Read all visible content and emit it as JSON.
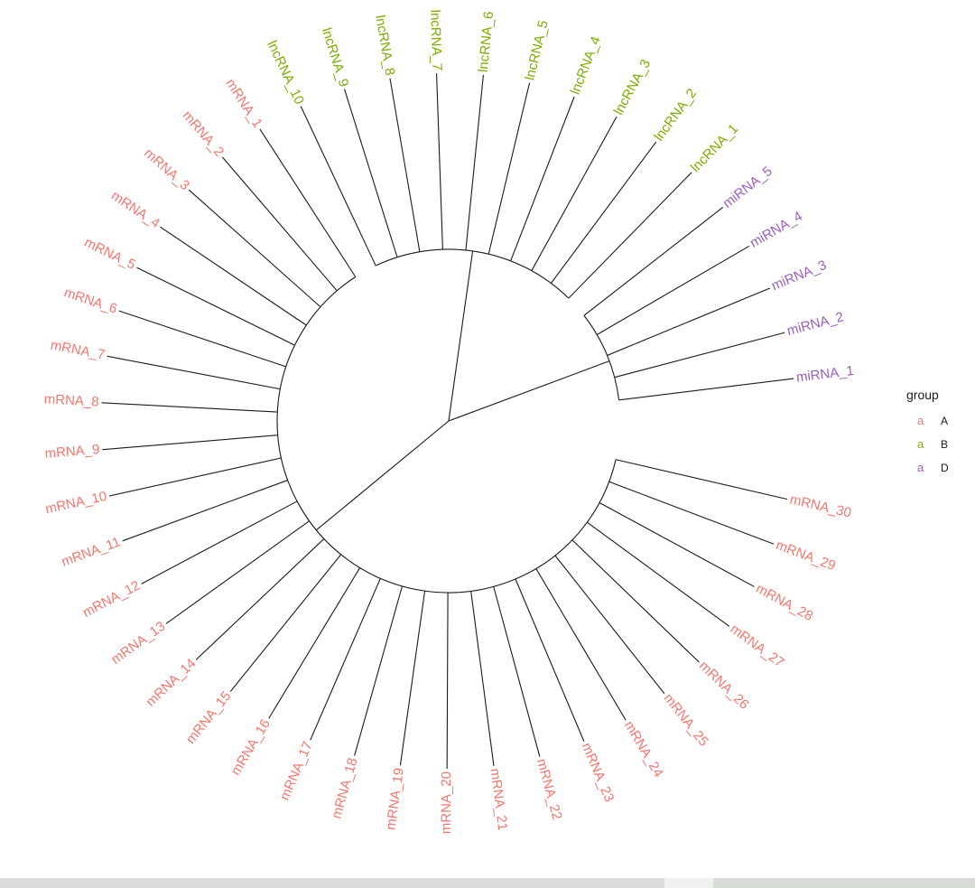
{
  "tree": {
    "colors": {
      "A": "#F8766D",
      "B": "#7CAE00",
      "D": "#9B5FC0",
      "line": "#1a1a1a"
    },
    "tips": [
      {
        "label": "miRNA_1",
        "group": "D"
      },
      {
        "label": "miRNA_2",
        "group": "D"
      },
      {
        "label": "miRNA_3",
        "group": "D"
      },
      {
        "label": "miRNA_4",
        "group": "D"
      },
      {
        "label": "miRNA_5",
        "group": "D"
      },
      {
        "label": "lncRNA_1",
        "group": "B"
      },
      {
        "label": "lncRNA_2",
        "group": "B"
      },
      {
        "label": "lncRNA_3",
        "group": "B"
      },
      {
        "label": "lncRNA_4",
        "group": "B"
      },
      {
        "label": "lncRNA_5",
        "group": "B"
      },
      {
        "label": "lncRNA_6",
        "group": "B"
      },
      {
        "label": "lncRNA_7",
        "group": "B"
      },
      {
        "label": "lncRNA_8",
        "group": "B"
      },
      {
        "label": "lncRNA_9",
        "group": "B"
      },
      {
        "label": "lncRNA_10",
        "group": "B"
      },
      {
        "label": "mRNA_1",
        "group": "A"
      },
      {
        "label": "mRNA_2",
        "group": "A"
      },
      {
        "label": "mRNA_3",
        "group": "A"
      },
      {
        "label": "mRNA_4",
        "group": "A"
      },
      {
        "label": "mRNA_5",
        "group": "A"
      },
      {
        "label": "mRNA_6",
        "group": "A"
      },
      {
        "label": "mRNA_7",
        "group": "A"
      },
      {
        "label": "mRNA_8",
        "group": "A"
      },
      {
        "label": "mRNA_9",
        "group": "A"
      },
      {
        "label": "mRNA_10",
        "group": "A"
      },
      {
        "label": "mRNA_11",
        "group": "A"
      },
      {
        "label": "mRNA_12",
        "group": "A"
      },
      {
        "label": "mRNA_13",
        "group": "A"
      },
      {
        "label": "mRNA_14",
        "group": "A"
      },
      {
        "label": "mRNA_15",
        "group": "A"
      },
      {
        "label": "mRNA_16",
        "group": "A"
      },
      {
        "label": "mRNA_17",
        "group": "A"
      },
      {
        "label": "mRNA_18",
        "group": "A"
      },
      {
        "label": "mRNA_19",
        "group": "A"
      },
      {
        "label": "mRNA_20",
        "group": "A"
      },
      {
        "label": "mRNA_21",
        "group": "A"
      },
      {
        "label": "mRNA_22",
        "group": "A"
      },
      {
        "label": "mRNA_23",
        "group": "A"
      },
      {
        "label": "mRNA_24",
        "group": "A"
      },
      {
        "label": "mRNA_25",
        "group": "A"
      },
      {
        "label": "mRNA_26",
        "group": "A"
      },
      {
        "label": "mRNA_27",
        "group": "A"
      },
      {
        "label": "mRNA_28",
        "group": "A"
      },
      {
        "label": "mRNA_29",
        "group": "A"
      },
      {
        "label": "mRNA_30",
        "group": "A"
      }
    ]
  },
  "legend": {
    "title": "group",
    "key_glyph": "a",
    "items": [
      {
        "label": "A",
        "group": "A"
      },
      {
        "label": "B",
        "group": "B"
      },
      {
        "label": "D",
        "group": "D"
      }
    ]
  }
}
